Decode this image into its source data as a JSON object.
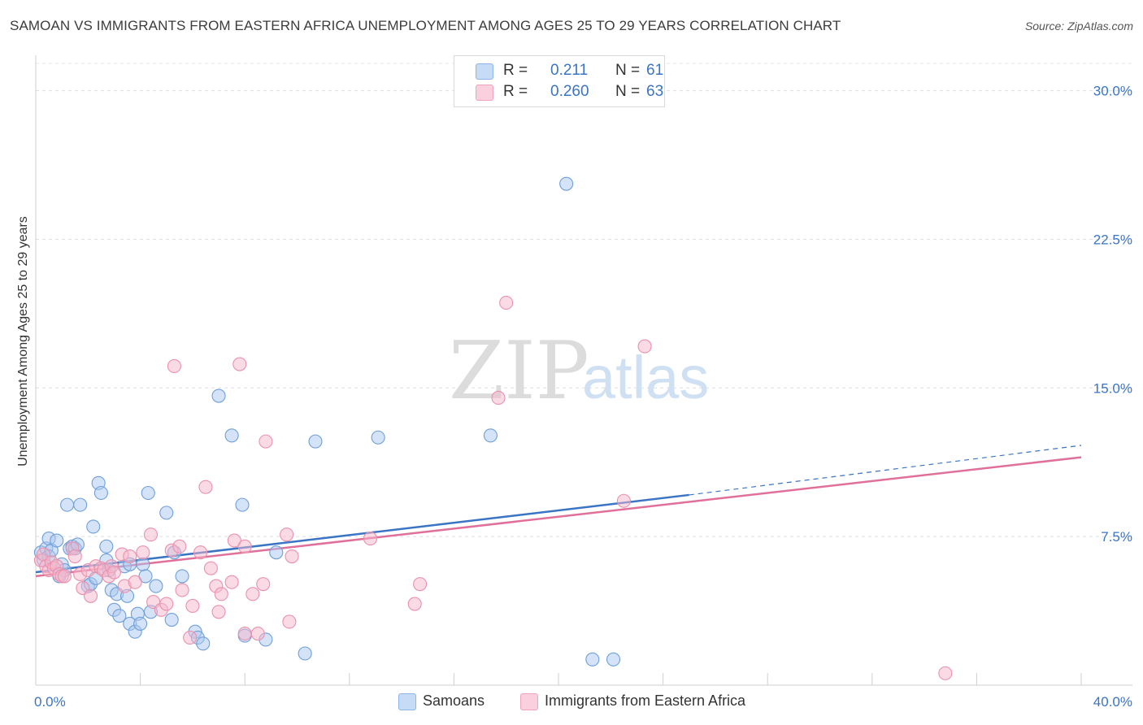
{
  "title": "SAMOAN VS IMMIGRANTS FROM EASTERN AFRICA UNEMPLOYMENT AMONG AGES 25 TO 29 YEARS CORRELATION CHART",
  "source": "Source: ZipAtlas.com",
  "watermark": {
    "zip": "ZIP",
    "atlas": "atlas"
  },
  "legend": {
    "rows": [
      {
        "r_label": "R =",
        "r_value": "0.211",
        "n_label": "N =",
        "n_value": "61",
        "color": "#a9c8f0"
      },
      {
        "r_label": "R =",
        "r_value": "0.260",
        "n_label": "N =",
        "n_value": "63",
        "color": "#f6b8cc"
      }
    ]
  },
  "chart_data": {
    "type": "scatter",
    "title": "SAMOAN VS IMMIGRANTS FROM EASTERN AFRICA UNEMPLOYMENT AMONG AGES 25 TO 29 YEARS CORRELATION CHART",
    "xlabel": "",
    "ylabel": "Unemployment Among Ages 25 to 29 years",
    "xlim": [
      0,
      40
    ],
    "ylim": [
      0,
      31.5
    ],
    "x_tick_labels": [
      "0.0%",
      "40.0%"
    ],
    "y_ticks": [
      7.5,
      15.0,
      22.5,
      30.0
    ],
    "y_tick_labels": [
      "7.5%",
      "15.0%",
      "22.5%",
      "30.0%"
    ],
    "grid": "horizontal dashed",
    "legend_position": "top-center",
    "series": [
      {
        "name": "Samoans",
        "color": "#a9c8f0",
        "stroke": "#6f9fd8",
        "trend": {
          "x": [
            0,
            25
          ],
          "y": [
            5.7,
            9.6
          ],
          "extended_to": [
            40,
            12.1
          ],
          "color": "#3a74c4"
        },
        "points": [
          [
            0.2,
            6.7
          ],
          [
            0.3,
            6.3
          ],
          [
            0.4,
            6.9
          ],
          [
            0.5,
            6.5
          ],
          [
            0.5,
            7.4
          ],
          [
            0.6,
            6.8
          ],
          [
            0.8,
            7.3
          ],
          [
            0.9,
            5.5
          ],
          [
            1.0,
            6.1
          ],
          [
            1.1,
            5.8
          ],
          [
            1.2,
            9.1
          ],
          [
            1.3,
            6.9
          ],
          [
            1.4,
            7.0
          ],
          [
            1.5,
            6.9
          ],
          [
            1.6,
            7.1
          ],
          [
            1.7,
            9.1
          ],
          [
            2.0,
            5.0
          ],
          [
            2.1,
            5.1
          ],
          [
            2.2,
            8.0
          ],
          [
            2.3,
            5.4
          ],
          [
            2.4,
            10.2
          ],
          [
            2.5,
            9.7
          ],
          [
            2.7,
            6.3
          ],
          [
            2.7,
            7.0
          ],
          [
            2.8,
            5.8
          ],
          [
            2.9,
            4.8
          ],
          [
            3.0,
            3.8
          ],
          [
            3.1,
            4.6
          ],
          [
            3.2,
            3.5
          ],
          [
            3.4,
            6.0
          ],
          [
            3.5,
            4.5
          ],
          [
            3.6,
            3.1
          ],
          [
            3.6,
            6.1
          ],
          [
            3.8,
            2.7
          ],
          [
            3.9,
            3.6
          ],
          [
            4.0,
            3.1
          ],
          [
            4.1,
            6.1
          ],
          [
            4.2,
            5.5
          ],
          [
            4.3,
            9.7
          ],
          [
            4.4,
            3.7
          ],
          [
            4.6,
            5.0
          ],
          [
            5.0,
            8.7
          ],
          [
            5.2,
            3.3
          ],
          [
            5.3,
            6.7
          ],
          [
            5.6,
            5.5
          ],
          [
            6.1,
            2.7
          ],
          [
            6.2,
            2.4
          ],
          [
            6.4,
            2.1
          ],
          [
            7.0,
            14.6
          ],
          [
            7.5,
            12.6
          ],
          [
            7.9,
            9.1
          ],
          [
            8.0,
            2.5
          ],
          [
            8.8,
            2.3
          ],
          [
            9.2,
            6.7
          ],
          [
            10.3,
            1.6
          ],
          [
            10.7,
            12.3
          ],
          [
            13.1,
            12.5
          ],
          [
            17.4,
            12.6
          ],
          [
            20.3,
            25.3
          ],
          [
            21.3,
            1.3
          ],
          [
            22.1,
            1.3
          ]
        ]
      },
      {
        "name": "Immigrants from Eastern Africa",
        "color": "#f6b8cc",
        "stroke": "#e991ad",
        "trend": {
          "x": [
            0,
            40
          ],
          "y": [
            5.5,
            11.5
          ],
          "color": "#e0709a"
        },
        "points": [
          [
            0.2,
            6.3
          ],
          [
            0.3,
            6.6
          ],
          [
            0.4,
            6.0
          ],
          [
            0.5,
            5.8
          ],
          [
            0.6,
            6.2
          ],
          [
            0.7,
            5.9
          ],
          [
            0.8,
            6.0
          ],
          [
            0.9,
            5.6
          ],
          [
            1.0,
            5.5
          ],
          [
            1.1,
            5.5
          ],
          [
            1.4,
            6.9
          ],
          [
            1.5,
            6.5
          ],
          [
            1.7,
            5.6
          ],
          [
            1.8,
            4.9
          ],
          [
            2.0,
            5.8
          ],
          [
            2.1,
            4.5
          ],
          [
            2.3,
            6.0
          ],
          [
            2.5,
            5.9
          ],
          [
            2.6,
            5.8
          ],
          [
            2.8,
            5.5
          ],
          [
            2.9,
            6.0
          ],
          [
            3.0,
            5.7
          ],
          [
            3.3,
            6.6
          ],
          [
            3.4,
            5.0
          ],
          [
            3.6,
            6.5
          ],
          [
            3.8,
            5.2
          ],
          [
            4.1,
            6.7
          ],
          [
            4.4,
            7.6
          ],
          [
            4.5,
            4.2
          ],
          [
            4.8,
            3.8
          ],
          [
            5.0,
            4.1
          ],
          [
            5.2,
            6.8
          ],
          [
            5.3,
            16.1
          ],
          [
            5.5,
            7.0
          ],
          [
            5.6,
            4.8
          ],
          [
            5.9,
            2.4
          ],
          [
            6.0,
            4.0
          ],
          [
            6.3,
            6.7
          ],
          [
            6.5,
            10.0
          ],
          [
            6.7,
            5.9
          ],
          [
            6.9,
            5.0
          ],
          [
            7.0,
            3.7
          ],
          [
            7.1,
            4.6
          ],
          [
            7.5,
            5.2
          ],
          [
            7.6,
            7.3
          ],
          [
            7.8,
            16.2
          ],
          [
            8.0,
            2.6
          ],
          [
            8.0,
            7.0
          ],
          [
            8.3,
            4.6
          ],
          [
            8.5,
            2.6
          ],
          [
            8.7,
            5.1
          ],
          [
            8.8,
            12.3
          ],
          [
            9.6,
            7.6
          ],
          [
            9.7,
            3.2
          ],
          [
            9.8,
            6.5
          ],
          [
            12.8,
            7.4
          ],
          [
            14.5,
            4.1
          ],
          [
            14.7,
            5.1
          ],
          [
            17.7,
            14.5
          ],
          [
            18.0,
            19.3
          ],
          [
            22.5,
            9.3
          ],
          [
            23.3,
            17.1
          ],
          [
            34.8,
            0.6
          ]
        ]
      }
    ]
  }
}
